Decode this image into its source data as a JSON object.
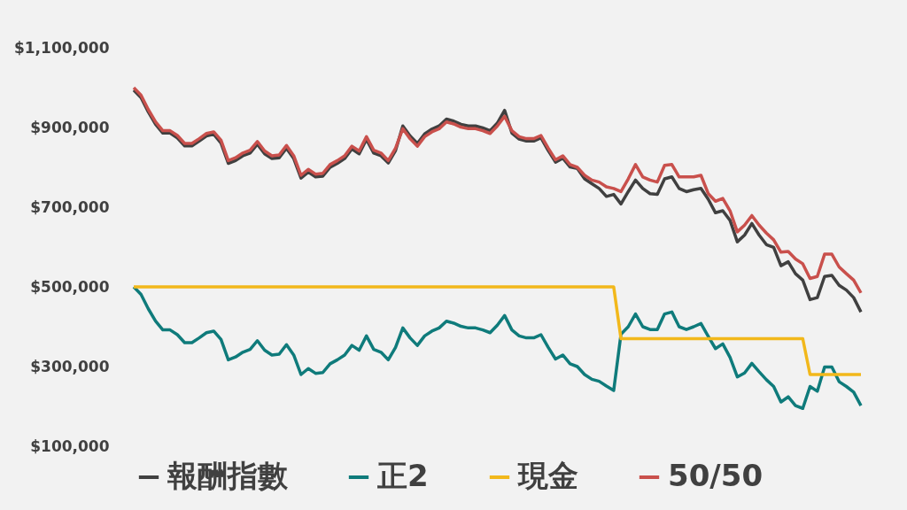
{
  "chart_data": {
    "type": "line",
    "categories": [
      null,
      null,
      null,
      null,
      null,
      null,
      null,
      null,
      null,
      null,
      null,
      null,
      null,
      null,
      null,
      null,
      null,
      null,
      null,
      null,
      null,
      null,
      null,
      null,
      null,
      null,
      null,
      null,
      null,
      null,
      null,
      null,
      null,
      null,
      null,
      null,
      null,
      null,
      null,
      null,
      null,
      null,
      null,
      null,
      null,
      null,
      null,
      null,
      null,
      null,
      null,
      null,
      null,
      null,
      null,
      null,
      null,
      null,
      null,
      null,
      null,
      null,
      null,
      null,
      null,
      null,
      null,
      null,
      null,
      null,
      null,
      null,
      null,
      null,
      null,
      null,
      null,
      null,
      null,
      null,
      null,
      null,
      null,
      null,
      null,
      null,
      null,
      null,
      null,
      null,
      null,
      null,
      null,
      null,
      null,
      null,
      null,
      null,
      null,
      null,
      null
    ],
    "ylim": [
      100000,
      1100000
    ],
    "yticks": [
      {
        "value": 100000,
        "label": "$100,000"
      },
      {
        "value": 300000,
        "label": "$300,000"
      },
      {
        "value": 500000,
        "label": "$500,000"
      },
      {
        "value": 700000,
        "label": "$700,000"
      },
      {
        "value": 900000,
        "label": "$900,000"
      },
      {
        "value": 1100000,
        "label": "$1,100,000"
      }
    ],
    "tick_labels": "y",
    "legend": "bottom",
    "series": [
      {
        "name": "報酬指數",
        "color": "#404040",
        "values": [
          994000,
          975000,
          939000,
          908000,
          886000,
          886000,
          874000,
          854000,
          854000,
          866000,
          879000,
          883000,
          861000,
          810000,
          817000,
          829000,
          836000,
          858000,
          834000,
          822000,
          824000,
          848000,
          822000,
          773000,
          788000,
          776000,
          778000,
          800000,
          810000,
          822000,
          846000,
          834000,
          870000,
          836000,
          829000,
          811000,
          842000,
          904000,
          879000,
          860000,
          884000,
          896000,
          904000,
          921000,
          916000,
          908000,
          904000,
          904000,
          899000,
          892000,
          911000,
          943000,
          886000,
          871000,
          866000,
          866000,
          874000,
          842000,
          813000,
          823000,
          801000,
          797000,
          771000,
          759000,
          747000,
          727000,
          732000,
          708000,
          739000,
          768000,
          747000,
          734000,
          732000,
          771000,
          776000,
          747000,
          739000,
          744000,
          747000,
          720000,
          686000,
          691000,
          667000,
          613000,
          630000,
          659000,
          630000,
          606000,
          599000,
          553000,
          563000,
          533000,
          517000,
          468000,
          473000,
          526000,
          529000,
          504000,
          492000,
          473000,
          437000
        ]
      },
      {
        "name": "正2",
        "color": "#0f7b7b",
        "values": [
          500000,
          481000,
          445000,
          414000,
          392000,
          392000,
          380000,
          360000,
          360000,
          372000,
          385000,
          389000,
          368000,
          317000,
          324000,
          336000,
          343000,
          365000,
          341000,
          329000,
          331000,
          355000,
          329000,
          280000,
          295000,
          283000,
          285000,
          307000,
          317000,
          329000,
          353000,
          341000,
          377000,
          343000,
          336000,
          317000,
          348000,
          397000,
          372000,
          353000,
          377000,
          389000,
          397000,
          414000,
          409000,
          401000,
          397000,
          397000,
          392000,
          385000,
          404000,
          428000,
          392000,
          377000,
          372000,
          372000,
          380000,
          348000,
          319000,
          329000,
          307000,
          300000,
          280000,
          268000,
          263000,
          251000,
          240000,
          381000,
          400000,
          432000,
          400000,
          393000,
          393000,
          432000,
          437000,
          400000,
          393000,
          400000,
          408000,
          376000,
          345000,
          357000,
          323000,
          274000,
          284000,
          308000,
          287000,
          267000,
          250000,
          211000,
          224000,
          202000,
          195000,
          250000,
          238000,
          299000,
          299000,
          262000,
          250000,
          236000,
          202000
        ]
      },
      {
        "name": "現金",
        "color": "#f2b81b",
        "values": [
          500000,
          500000,
          500000,
          500000,
          500000,
          500000,
          500000,
          500000,
          500000,
          500000,
          500000,
          500000,
          500000,
          500000,
          500000,
          500000,
          500000,
          500000,
          500000,
          500000,
          500000,
          500000,
          500000,
          500000,
          500000,
          500000,
          500000,
          500000,
          500000,
          500000,
          500000,
          500000,
          500000,
          500000,
          500000,
          500000,
          500000,
          500000,
          500000,
          500000,
          500000,
          500000,
          500000,
          500000,
          500000,
          500000,
          500000,
          500000,
          500000,
          500000,
          500000,
          500000,
          500000,
          500000,
          500000,
          500000,
          500000,
          500000,
          500000,
          500000,
          500000,
          500000,
          500000,
          500000,
          500000,
          500000,
          500000,
          370000,
          370000,
          370000,
          370000,
          370000,
          370000,
          370000,
          370000,
          370000,
          370000,
          370000,
          370000,
          370000,
          370000,
          370000,
          370000,
          370000,
          370000,
          370000,
          370000,
          370000,
          370000,
          370000,
          370000,
          370000,
          370000,
          280000,
          280000,
          280000,
          280000,
          280000,
          280000,
          280000,
          280000
        ]
      },
      {
        "name": "50/50",
        "color": "#c9504c",
        "values": [
          1000000,
          981000,
          945000,
          914000,
          892000,
          892000,
          880000,
          860000,
          860000,
          872000,
          885000,
          889000,
          868000,
          817000,
          824000,
          836000,
          843000,
          865000,
          841000,
          829000,
          831000,
          855000,
          829000,
          780000,
          795000,
          783000,
          785000,
          807000,
          817000,
          829000,
          853000,
          841000,
          877000,
          843000,
          836000,
          817000,
          848000,
          897000,
          872000,
          853000,
          877000,
          889000,
          897000,
          914000,
          909000,
          901000,
          897000,
          897000,
          892000,
          885000,
          904000,
          928000,
          892000,
          877000,
          872000,
          872000,
          880000,
          848000,
          819000,
          829000,
          807000,
          800000,
          780000,
          768000,
          763000,
          751000,
          747000,
          739000,
          771000,
          807000,
          776000,
          768000,
          763000,
          805000,
          807000,
          776000,
          776000,
          776000,
          780000,
          734000,
          715000,
          722000,
          691000,
          638000,
          655000,
          679000,
          655000,
          635000,
          618000,
          587000,
          589000,
          570000,
          558000,
          521000,
          526000,
          582000,
          582000,
          550000,
          533000,
          517000,
          485000
        ]
      }
    ]
  }
}
